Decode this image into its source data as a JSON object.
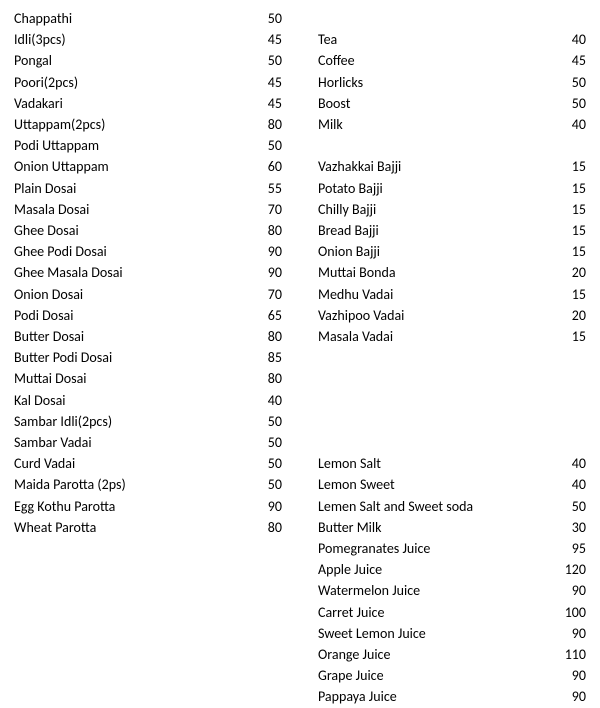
{
  "left": [
    {
      "name": "Chappathi",
      "price": 50
    },
    {
      "name": "Idli(3pcs)",
      "price": 45
    },
    {
      "name": "Pongal",
      "price": 50
    },
    {
      "name": "Poori(2pcs)",
      "price": 45
    },
    {
      "name": "Vadakari",
      "price": 45
    },
    {
      "name": "Uttappam(2pcs)",
      "price": 80
    },
    {
      "name": "Podi Uttappam",
      "price": 50
    },
    {
      "name": "Onion Uttappam",
      "price": 60
    },
    {
      "name": "Plain Dosai",
      "price": 55
    },
    {
      "name": "Masala Dosai",
      "price": 70
    },
    {
      "name": "Ghee Dosai",
      "price": 80
    },
    {
      "name": "Ghee Podi Dosai",
      "price": 90
    },
    {
      "name": "Ghee Masala Dosai",
      "price": 90
    },
    {
      "name": "Onion Dosai",
      "price": 70
    },
    {
      "name": "Podi Dosai",
      "price": 65
    },
    {
      "name": "Butter Dosai",
      "price": 80
    },
    {
      "name": "Butter Podi Dosai",
      "price": 85
    },
    {
      "name": "Muttai Dosai",
      "price": 80
    },
    {
      "name": "Kal Dosai",
      "price": 40
    },
    {
      "name": "Sambar Idli(2pcs)",
      "price": 50
    },
    {
      "name": "Sambar Vadai",
      "price": 50
    },
    {
      "name": "Curd Vadai",
      "price": 50
    },
    {
      "name": "Maida Parotta (2ps)",
      "price": 50
    },
    {
      "name": "Egg Kothu Parotta",
      "price": 90
    },
    {
      "name": "Wheat Parotta",
      "price": 80
    }
  ],
  "right_beverages": [
    {
      "name": "Tea",
      "price": 40
    },
    {
      "name": "Coffee",
      "price": 45
    },
    {
      "name": "Horlicks",
      "price": 50
    },
    {
      "name": "Boost",
      "price": 50
    },
    {
      "name": "Milk",
      "price": 40
    }
  ],
  "right_snacks": [
    {
      "name": "Vazhakkai Bajji",
      "price": 15
    },
    {
      "name": "Potato Bajji",
      "price": 15
    },
    {
      "name": "Chilly Bajji",
      "price": 15
    },
    {
      "name": "Bread Bajji",
      "price": 15
    },
    {
      "name": "Onion Bajji",
      "price": 15
    },
    {
      "name": "Muttai Bonda",
      "price": 20
    },
    {
      "name": "Medhu Vadai",
      "price": 15
    },
    {
      "name": "Vazhipoo Vadai",
      "price": 20
    },
    {
      "name": "Masala Vadai",
      "price": 15
    }
  ],
  "right_juices": [
    {
      "name": "Lemon Salt",
      "price": 40
    },
    {
      "name": "Lemon Sweet",
      "price": 40
    },
    {
      "name": "Lemen Salt and Sweet soda",
      "price": 50
    },
    {
      "name": "Butter Milk",
      "price": 30
    },
    {
      "name": "Pomegranates Juice",
      "price": 95
    },
    {
      "name": "Apple Juice",
      "price": 120
    },
    {
      "name": "Watermelon Juice",
      "price": 90
    },
    {
      "name": "Carret Juice",
      "price": 100
    },
    {
      "name": "Sweet Lemon Juice",
      "price": 90
    },
    {
      "name": "Orange Juice",
      "price": 110
    },
    {
      "name": "Grape Juice",
      "price": 90
    },
    {
      "name": "Pappaya Juice",
      "price": 90
    }
  ]
}
